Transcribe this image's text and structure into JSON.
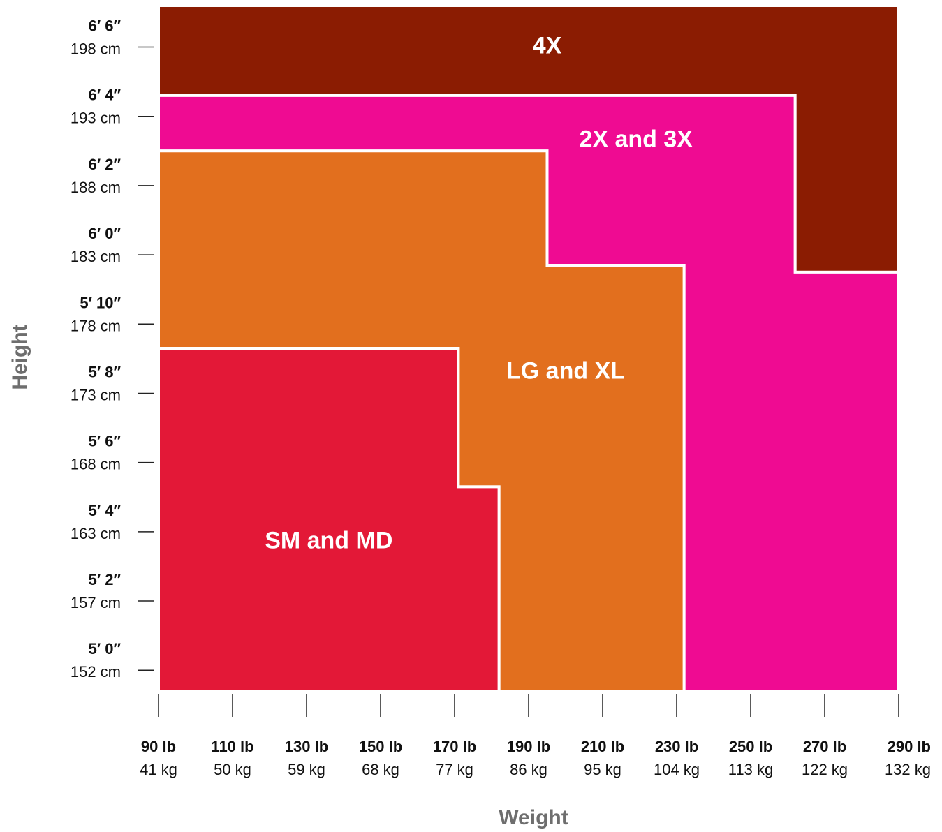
{
  "chart_data": {
    "type": "area",
    "xlabel": "Weight",
    "ylabel": "Height",
    "x_ticks": [
      {
        "value": 90,
        "primary": "90 lb",
        "secondary": "41 kg"
      },
      {
        "value": 110,
        "primary": "110 lb",
        "secondary": "50 kg"
      },
      {
        "value": 130,
        "primary": "130 lb",
        "secondary": "59 kg"
      },
      {
        "value": 150,
        "primary": "150 lb",
        "secondary": "68 kg"
      },
      {
        "value": 170,
        "primary": "170 lb",
        "secondary": "77 kg"
      },
      {
        "value": 190,
        "primary": "190 lb",
        "secondary": "86 kg"
      },
      {
        "value": 210,
        "primary": "210 lb",
        "secondary": "95 kg"
      },
      {
        "value": 230,
        "primary": "230 lb",
        "secondary": "104 kg"
      },
      {
        "value": 250,
        "primary": "250 lb",
        "secondary": "113 kg"
      },
      {
        "value": 270,
        "primary": "270 lb",
        "secondary": "122 kg"
      },
      {
        "value": 290,
        "primary": "290 lb",
        "secondary": "132 kg"
      }
    ],
    "y_ticks": [
      {
        "value": 60,
        "primary": "5′ 0″",
        "secondary": "152 cm"
      },
      {
        "value": 62,
        "primary": "5′ 2″",
        "secondary": "157 cm"
      },
      {
        "value": 64,
        "primary": "5′ 4″",
        "secondary": "163 cm"
      },
      {
        "value": 66,
        "primary": "5′ 6″",
        "secondary": "168 cm"
      },
      {
        "value": 68,
        "primary": "5′ 8″",
        "secondary": "173 cm"
      },
      {
        "value": 70,
        "primary": "5′ 10″",
        "secondary": "178 cm"
      },
      {
        "value": 72,
        "primary": "6′ 0″",
        "secondary": "183 cm"
      },
      {
        "value": 74,
        "primary": "6′ 2″",
        "secondary": "188 cm"
      },
      {
        "value": 76,
        "primary": "6′ 4″",
        "secondary": "193 cm"
      },
      {
        "value": 78,
        "primary": "6′ 6″",
        "secondary": "198 cm"
      }
    ],
    "xlim": [
      90,
      290
    ],
    "ylim": [
      59.4,
      79.2
    ],
    "regions": [
      {
        "name": "4X",
        "color": "#8b1c02",
        "label_at": [
          195,
          78
        ],
        "polygon": [
          [
            90,
            79.2
          ],
          [
            290,
            79.2
          ],
          [
            290,
            71.5
          ],
          [
            262,
            71.5
          ],
          [
            262,
            76.6
          ],
          [
            90,
            76.6
          ]
        ]
      },
      {
        "name": "2X and 3X",
        "color": "#ef0b92",
        "label_at": [
          219,
          75.3
        ],
        "polygon": [
          [
            90,
            76.6
          ],
          [
            262,
            76.6
          ],
          [
            262,
            71.5
          ],
          [
            290,
            71.5
          ],
          [
            290,
            59.4
          ],
          [
            232,
            59.4
          ],
          [
            232,
            71.7
          ],
          [
            195,
            71.7
          ],
          [
            195,
            75
          ],
          [
            90,
            75
          ]
        ]
      },
      {
        "name": "LG and XL",
        "color": "#e26f1e",
        "label_at": [
          200,
          68.6
        ],
        "polygon": [
          [
            90,
            75
          ],
          [
            195,
            75
          ],
          [
            195,
            71.7
          ],
          [
            232,
            71.7
          ],
          [
            232,
            59.4
          ],
          [
            182,
            59.4
          ],
          [
            182,
            65.3
          ],
          [
            171,
            65.3
          ],
          [
            171,
            69.3
          ],
          [
            90,
            69.3
          ]
        ]
      },
      {
        "name": "SM and MD",
        "color": "#e31837",
        "label_at": [
          136,
          63.7
        ],
        "polygon": [
          [
            90,
            69.3
          ],
          [
            171,
            69.3
          ],
          [
            171,
            65.3
          ],
          [
            182,
            65.3
          ],
          [
            182,
            59.4
          ],
          [
            90,
            59.4
          ]
        ]
      }
    ],
    "grid": false,
    "legend": "none"
  }
}
